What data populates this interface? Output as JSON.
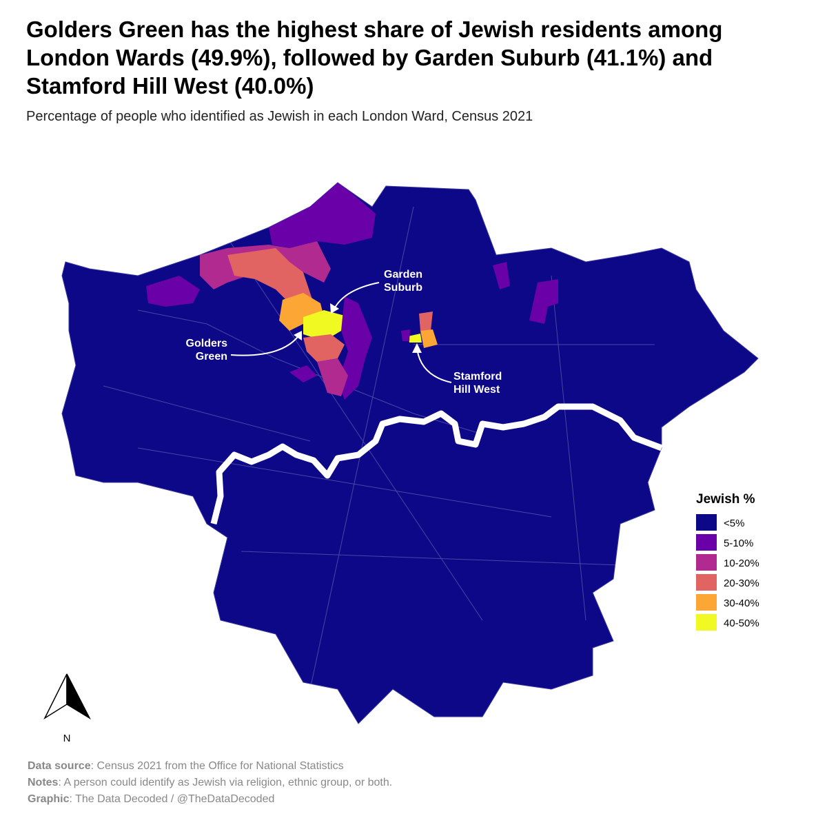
{
  "header": {
    "title": [
      "Golders Green has the highest share of Jewish residents among",
      "London Wards (49.9%), followed by Garden Suburb (41.1%) and",
      "Stamford Hill West (40.0%)"
    ],
    "subtitle": "Percentage of people who identified as Jewish in each London Ward, Census 2021"
  },
  "annotations": [
    {
      "lines": [
        "Garden",
        "Suburb"
      ]
    },
    {
      "lines": [
        "Golders",
        "Green"
      ]
    },
    {
      "lines": [
        "Stamford",
        "Hill West"
      ]
    }
  ],
  "legend": {
    "title": "Jewish %",
    "items": [
      {
        "label": "<5%",
        "color": "#0d0887"
      },
      {
        "label": "5-10%",
        "color": "#6a00a8"
      },
      {
        "label": "10-20%",
        "color": "#b12a90"
      },
      {
        "label": "20-30%",
        "color": "#e16462"
      },
      {
        "label": "30-40%",
        "color": "#fca636"
      },
      {
        "label": "40-50%",
        "color": "#f0f921"
      }
    ]
  },
  "north_arrow": "N",
  "footer": [
    {
      "label": "Data source",
      "text": ": Census 2021 from the Office for National Statistics"
    },
    {
      "label": "Notes",
      "text": ": A person could identify as Jewish via religion, ethnic group, or both."
    },
    {
      "label": "Graphic",
      "text": ": The Data Decoded / @TheDataDecoded"
    }
  ]
}
